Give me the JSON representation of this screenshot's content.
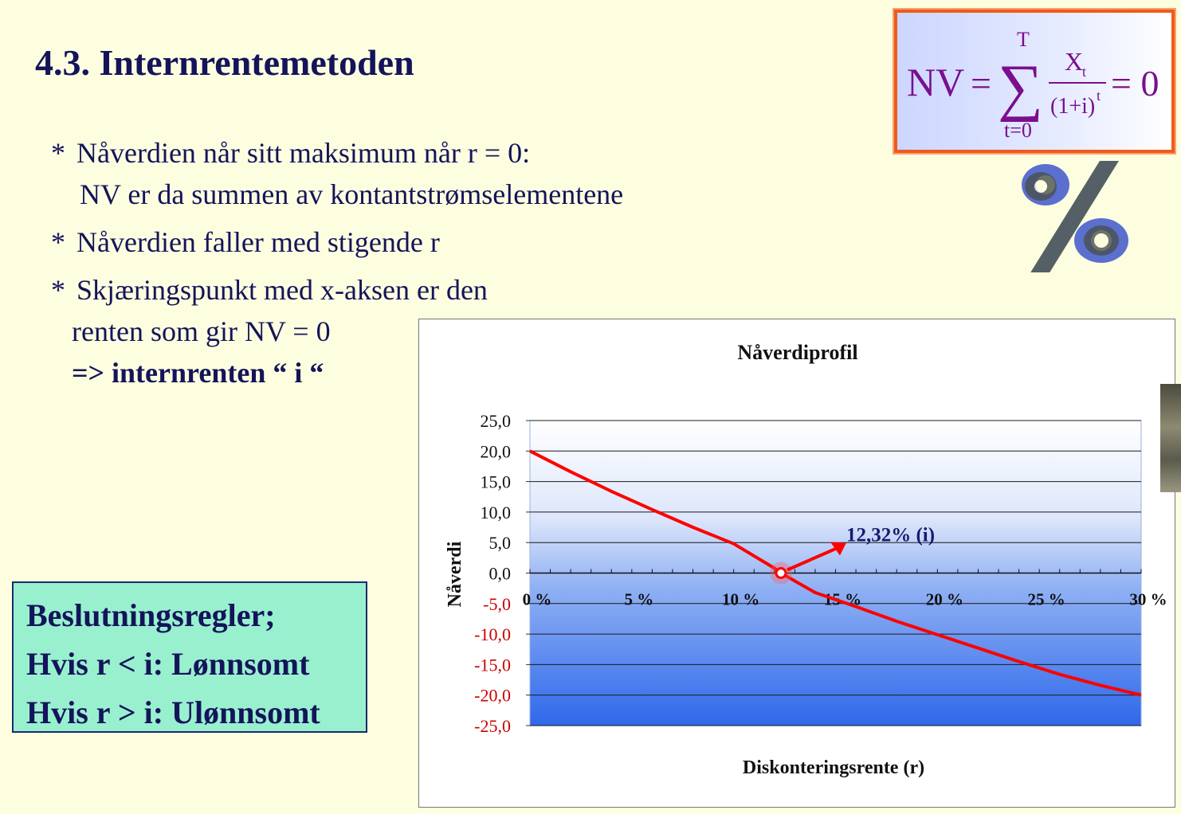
{
  "slide": {
    "title": "4.3. Internrentemetoden",
    "bullets": [
      {
        "star": "*",
        "line1": "Nåverdien når sitt maksimum når r = 0:",
        "line2": "NV er da summen av kontantstrømselementene"
      },
      {
        "star": "*",
        "line1": "Nåverdien faller med stigende r"
      },
      {
        "star": "*",
        "line1": "Skjæringspunkt med x-aksen er den",
        "line2": "renten som gir NV = 0",
        "line3": "=> internrenten “ i “"
      }
    ]
  },
  "formula": {
    "lhs": "NV",
    "eq": "=",
    "sum_sign": "∑",
    "upper": "T",
    "lower": "t=0",
    "numerator": "X",
    "numerator_sub": "t",
    "denominator": "(1+i)",
    "denominator_sup": "t",
    "rhs": "= 0"
  },
  "rules": {
    "heading": "Beslutningsregler;",
    "rule1": "Hvis r < i: Lønnsomt",
    "rule2": "Hvis r > i: Ulønnsomt"
  },
  "colors": {
    "title_text": "#14145a",
    "line": "#ff0000",
    "negative_ticks": "#cc0000",
    "formula_border": "#f05a1e",
    "rules_bg": "#99f0cf",
    "annotation": "#1a1a6e"
  },
  "icons": {
    "percent": "percent-icon"
  },
  "chart_data": {
    "type": "line",
    "title": "Nåverdiprofil",
    "xlabel": "Diskonteringsrente (r)",
    "ylabel": "Nåverdi",
    "ylim": [
      -25,
      25
    ],
    "xlim": [
      0,
      30
    ],
    "grid": true,
    "y_ticks": [
      25,
      20,
      15,
      10,
      5,
      0,
      -5,
      -10,
      -15,
      -20,
      -25
    ],
    "y_tick_labels": [
      "25,0",
      "20,0",
      "15,0",
      "10,0",
      "5,0",
      "0,0",
      "-5,0",
      "-10,0",
      "-15,0",
      "-20,0",
      "-25,0"
    ],
    "x_ticks": [
      0,
      5,
      10,
      15,
      20,
      25,
      30
    ],
    "x_tick_labels": [
      "0 %",
      "5 %",
      "10 %",
      "15 %",
      "20 %",
      "25 %",
      "30 %"
    ],
    "series": [
      {
        "x": [
          0,
          2,
          4,
          6,
          8,
          10,
          12,
          12.32,
          14,
          16,
          18,
          20,
          22,
          24,
          26,
          28,
          30
        ],
        "values": [
          20,
          16.6,
          13.4,
          10.4,
          7.5,
          4.8,
          0.8,
          0,
          -3.2,
          -5.5,
          -7.9,
          -10.1,
          -12.3,
          -14.5,
          -16.6,
          -18.4,
          -20
        ]
      }
    ],
    "annotation": {
      "text": "12,32% (i)",
      "x": 12.32,
      "y": 0
    }
  }
}
